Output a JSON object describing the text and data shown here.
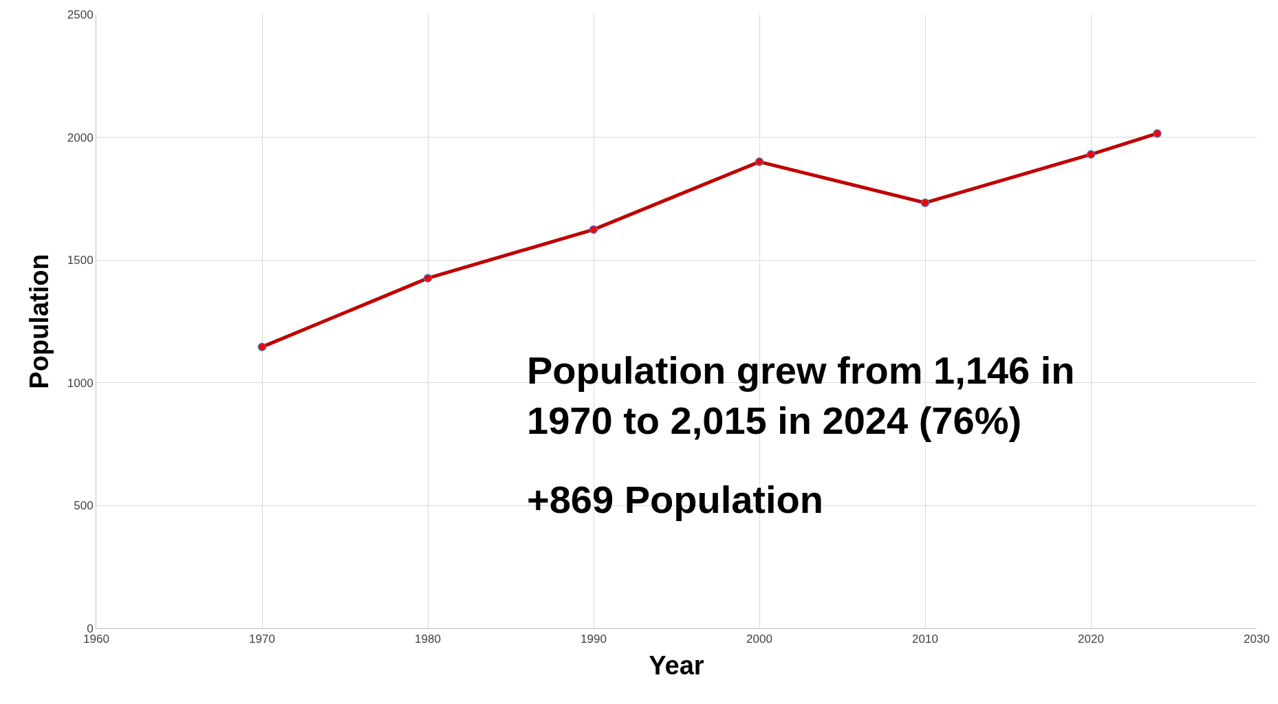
{
  "chart_data": {
    "type": "line",
    "xlabel": "Year",
    "ylabel": "Population",
    "x": [
      1970,
      1980,
      1990,
      2000,
      2010,
      2020,
      2024
    ],
    "series": [
      {
        "color": "#c00000",
        "values": [
          1146,
          1426,
          1624,
          1900,
          1733,
          1930,
          2015
        ]
      }
    ],
    "xlim": [
      1960,
      2030
    ],
    "xticks": [
      1960,
      1970,
      1980,
      1990,
      2000,
      2010,
      2020,
      2030
    ],
    "ylim": [
      0,
      2500
    ],
    "yticks": [
      0,
      500,
      1000,
      1500,
      2000,
      2500
    ],
    "grid": true,
    "marker": "circle",
    "line_style": "solid",
    "annotations": [
      "Population grew from 1,146 in 1970 to 2,015 in 2024 (76%)",
      "+869 Population"
    ]
  }
}
